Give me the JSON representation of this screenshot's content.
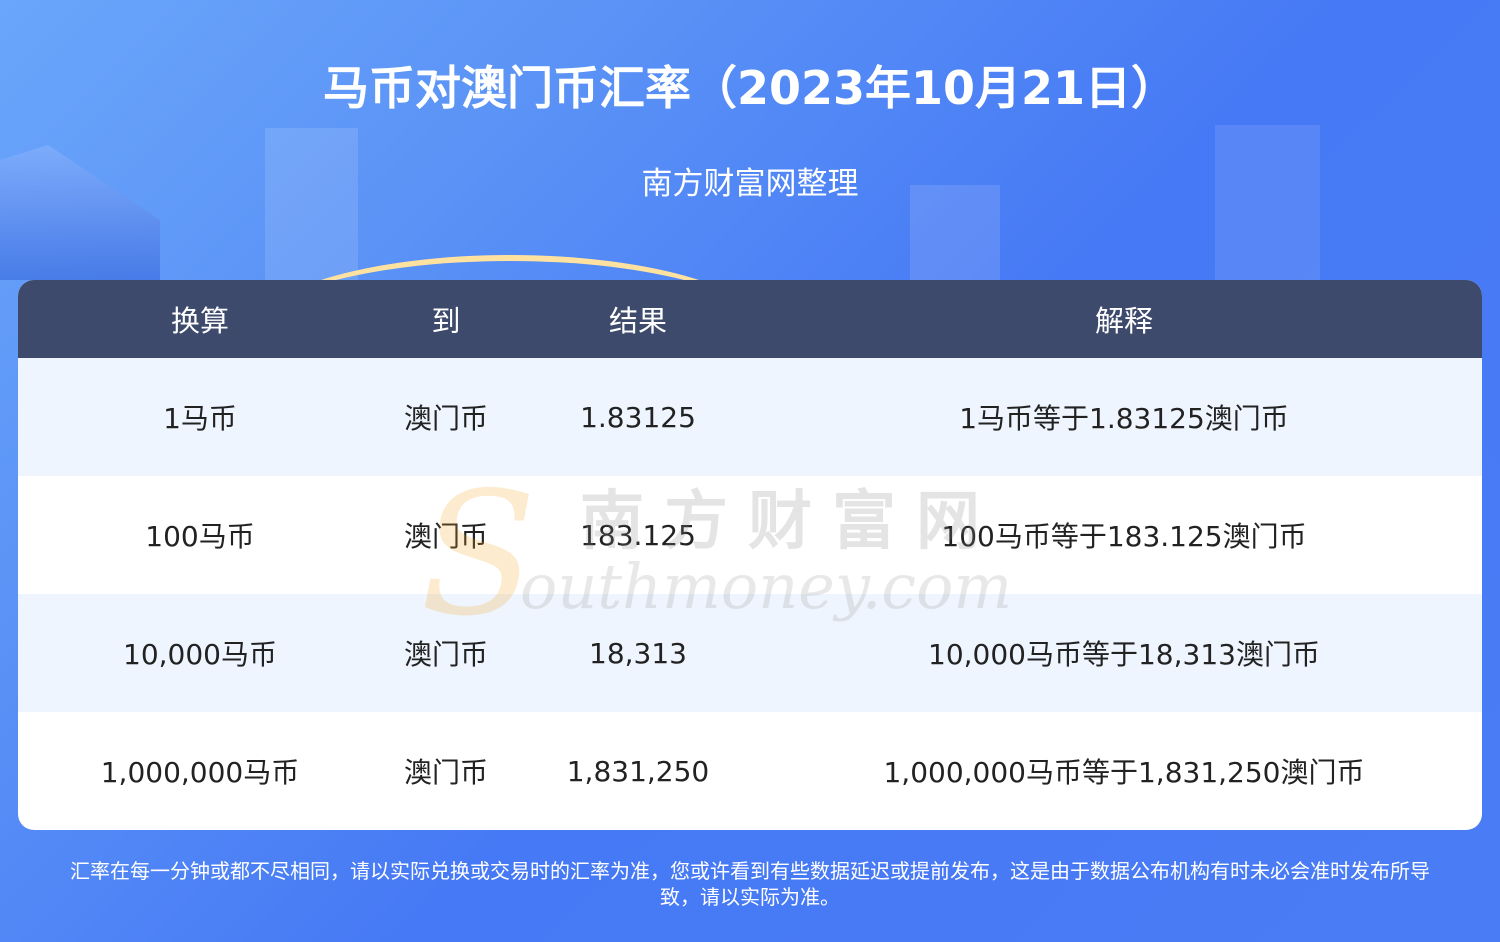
{
  "header": {
    "title": "马币对澳门币汇率（2023年10月21日）",
    "subtitle": "南方财富网整理"
  },
  "table": {
    "columns": [
      "换算",
      "到",
      "结果",
      "解释"
    ],
    "rows": [
      [
        "1马币",
        "澳门币",
        "1.83125",
        "1马币等于1.83125澳门币"
      ],
      [
        "100马币",
        "澳门币",
        "183.125",
        "100马币等于183.125澳门币"
      ],
      [
        "10,000马币",
        "澳门币",
        "18,313",
        "10,000马币等于18,313澳门币"
      ],
      [
        "1,000,000马币",
        "澳门币",
        "1,831,250",
        "1,000,000马币等于1,831,250澳门币"
      ]
    ]
  },
  "watermark": {
    "cn": "南方财富网",
    "en": "outhmoney.com",
    "s": "S"
  },
  "footer": {
    "line1": "汇率在每一分钟或都不尽相同，请以实际兑换或交易时的汇率为准，您或许看到有些数据延迟或提前发布，这是由于数据公布机构有时未必会准时发布所导",
    "line2": "致，请以实际为准。"
  },
  "colors": {
    "background": "#4479f5",
    "table_header": "#3d4a6b",
    "row_alt": "#eff5fe"
  }
}
